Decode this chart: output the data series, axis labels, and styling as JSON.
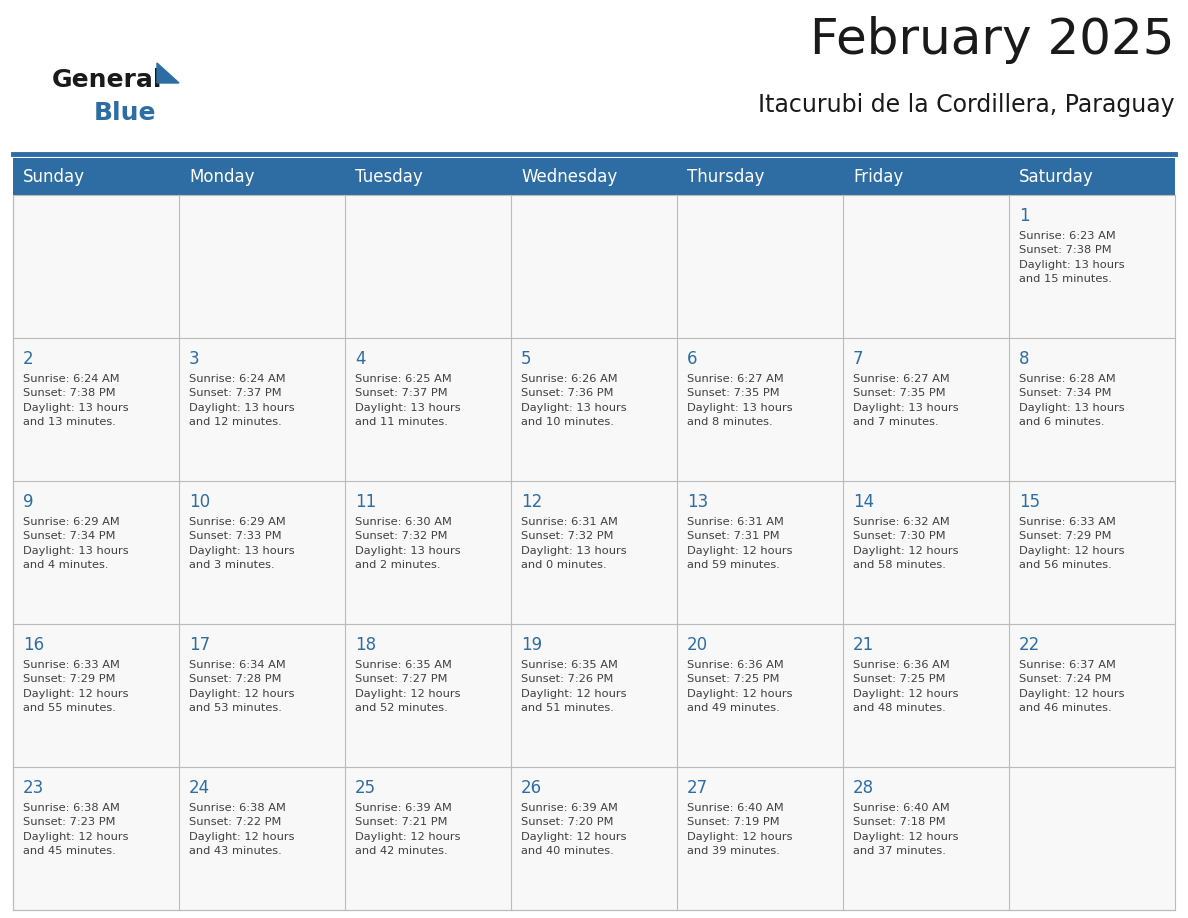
{
  "title": "February 2025",
  "subtitle": "Itacurubi de la Cordillera, Paraguay",
  "header_bg": "#2E6DA4",
  "header_text": "#FFFFFF",
  "cell_bg": "#F8F8F8",
  "day_number_color": "#2E6DA4",
  "info_text_color": "#404040",
  "grid_color": "#BBBBBB",
  "days_of_week": [
    "Sunday",
    "Monday",
    "Tuesday",
    "Wednesday",
    "Thursday",
    "Friday",
    "Saturday"
  ],
  "weeks": [
    [
      {
        "day": null,
        "info": ""
      },
      {
        "day": null,
        "info": ""
      },
      {
        "day": null,
        "info": ""
      },
      {
        "day": null,
        "info": ""
      },
      {
        "day": null,
        "info": ""
      },
      {
        "day": null,
        "info": ""
      },
      {
        "day": 1,
        "info": "Sunrise: 6:23 AM\nSunset: 7:38 PM\nDaylight: 13 hours\nand 15 minutes."
      }
    ],
    [
      {
        "day": 2,
        "info": "Sunrise: 6:24 AM\nSunset: 7:38 PM\nDaylight: 13 hours\nand 13 minutes."
      },
      {
        "day": 3,
        "info": "Sunrise: 6:24 AM\nSunset: 7:37 PM\nDaylight: 13 hours\nand 12 minutes."
      },
      {
        "day": 4,
        "info": "Sunrise: 6:25 AM\nSunset: 7:37 PM\nDaylight: 13 hours\nand 11 minutes."
      },
      {
        "day": 5,
        "info": "Sunrise: 6:26 AM\nSunset: 7:36 PM\nDaylight: 13 hours\nand 10 minutes."
      },
      {
        "day": 6,
        "info": "Sunrise: 6:27 AM\nSunset: 7:35 PM\nDaylight: 13 hours\nand 8 minutes."
      },
      {
        "day": 7,
        "info": "Sunrise: 6:27 AM\nSunset: 7:35 PM\nDaylight: 13 hours\nand 7 minutes."
      },
      {
        "day": 8,
        "info": "Sunrise: 6:28 AM\nSunset: 7:34 PM\nDaylight: 13 hours\nand 6 minutes."
      }
    ],
    [
      {
        "day": 9,
        "info": "Sunrise: 6:29 AM\nSunset: 7:34 PM\nDaylight: 13 hours\nand 4 minutes."
      },
      {
        "day": 10,
        "info": "Sunrise: 6:29 AM\nSunset: 7:33 PM\nDaylight: 13 hours\nand 3 minutes."
      },
      {
        "day": 11,
        "info": "Sunrise: 6:30 AM\nSunset: 7:32 PM\nDaylight: 13 hours\nand 2 minutes."
      },
      {
        "day": 12,
        "info": "Sunrise: 6:31 AM\nSunset: 7:32 PM\nDaylight: 13 hours\nand 0 minutes."
      },
      {
        "day": 13,
        "info": "Sunrise: 6:31 AM\nSunset: 7:31 PM\nDaylight: 12 hours\nand 59 minutes."
      },
      {
        "day": 14,
        "info": "Sunrise: 6:32 AM\nSunset: 7:30 PM\nDaylight: 12 hours\nand 58 minutes."
      },
      {
        "day": 15,
        "info": "Sunrise: 6:33 AM\nSunset: 7:29 PM\nDaylight: 12 hours\nand 56 minutes."
      }
    ],
    [
      {
        "day": 16,
        "info": "Sunrise: 6:33 AM\nSunset: 7:29 PM\nDaylight: 12 hours\nand 55 minutes."
      },
      {
        "day": 17,
        "info": "Sunrise: 6:34 AM\nSunset: 7:28 PM\nDaylight: 12 hours\nand 53 minutes."
      },
      {
        "day": 18,
        "info": "Sunrise: 6:35 AM\nSunset: 7:27 PM\nDaylight: 12 hours\nand 52 minutes."
      },
      {
        "day": 19,
        "info": "Sunrise: 6:35 AM\nSunset: 7:26 PM\nDaylight: 12 hours\nand 51 minutes."
      },
      {
        "day": 20,
        "info": "Sunrise: 6:36 AM\nSunset: 7:25 PM\nDaylight: 12 hours\nand 49 minutes."
      },
      {
        "day": 21,
        "info": "Sunrise: 6:36 AM\nSunset: 7:25 PM\nDaylight: 12 hours\nand 48 minutes."
      },
      {
        "day": 22,
        "info": "Sunrise: 6:37 AM\nSunset: 7:24 PM\nDaylight: 12 hours\nand 46 minutes."
      }
    ],
    [
      {
        "day": 23,
        "info": "Sunrise: 6:38 AM\nSunset: 7:23 PM\nDaylight: 12 hours\nand 45 minutes."
      },
      {
        "day": 24,
        "info": "Sunrise: 6:38 AM\nSunset: 7:22 PM\nDaylight: 12 hours\nand 43 minutes."
      },
      {
        "day": 25,
        "info": "Sunrise: 6:39 AM\nSunset: 7:21 PM\nDaylight: 12 hours\nand 42 minutes."
      },
      {
        "day": 26,
        "info": "Sunrise: 6:39 AM\nSunset: 7:20 PM\nDaylight: 12 hours\nand 40 minutes."
      },
      {
        "day": 27,
        "info": "Sunrise: 6:40 AM\nSunset: 7:19 PM\nDaylight: 12 hours\nand 39 minutes."
      },
      {
        "day": 28,
        "info": "Sunrise: 6:40 AM\nSunset: 7:18 PM\nDaylight: 12 hours\nand 37 minutes."
      },
      {
        "day": null,
        "info": ""
      }
    ]
  ],
  "logo_general_color": "#1a1a1a",
  "logo_blue_color": "#2E6DA4",
  "title_fontsize": 36,
  "subtitle_fontsize": 17,
  "header_fontsize": 12,
  "day_number_fontsize": 12,
  "info_fontsize": 8.2
}
